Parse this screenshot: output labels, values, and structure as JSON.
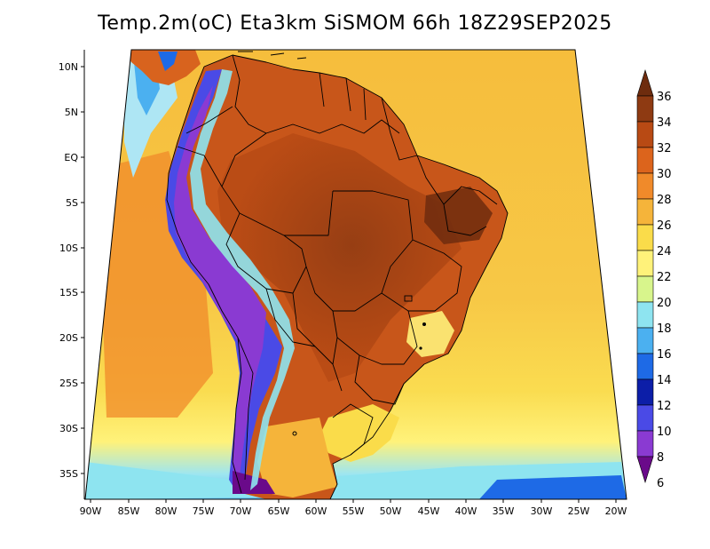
{
  "title": "Temp.2m(oC) Eta3km SiSMOM 66h 18Z29SEP2025",
  "lat_labels": [
    "10N",
    "5N",
    "EQ",
    "5S",
    "10S",
    "15S",
    "20S",
    "25S",
    "30S",
    "35S"
  ],
  "lon_labels": [
    "90W",
    "85W",
    "80W",
    "75W",
    "70W",
    "65W",
    "60W",
    "55W",
    "50W",
    "45W",
    "40W",
    "35W",
    "30W",
    "25W",
    "20W"
  ],
  "colorbar": {
    "labels": [
      "36",
      "34",
      "32",
      "30",
      "28",
      "26",
      "24",
      "22",
      "20",
      "18",
      "16",
      "14",
      "12",
      "10",
      "8",
      "6"
    ],
    "colors": [
      "#6e2c0e",
      "#8e3a12",
      "#b84a14",
      "#dc641c",
      "#f08a2a",
      "#f5b43a",
      "#fadc4a",
      "#fff27a",
      "#d8f58c",
      "#8ee4f0",
      "#4bb0f0",
      "#1e6ae6",
      "#0c1ea8",
      "#4a4ae6",
      "#8a3ad2",
      "#6a0a8a"
    ]
  },
  "land_colors": {
    "ocean_warm": "#f7c23e",
    "ocean_mid": "#fadc50",
    "ocean_cool": "#fff27a",
    "land_hot": "#c8561a",
    "land_very_hot": "#8e3a12",
    "andes_cold": "#4a4ae6",
    "andes_colder": "#6a0a8a",
    "border": "#000000"
  }
}
